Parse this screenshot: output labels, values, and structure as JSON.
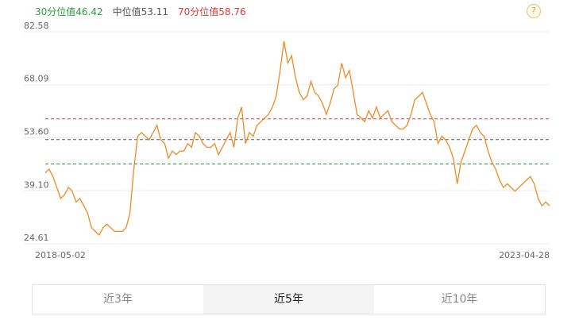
{
  "help_icon": "?",
  "chart_data": {
    "type": "line",
    "reference_lines": [
      {
        "name": "30分位值",
        "value": 46.42,
        "color": "#2a9d3a"
      },
      {
        "name": "中位值",
        "value": 53.11,
        "color": "#555555"
      },
      {
        "name": "70分位值",
        "value": 58.76,
        "color": "#d43a3a"
      }
    ],
    "ylim": [
      24.61,
      82.58
    ],
    "yticks": [
      24.61,
      {
        "value": 39.1,
        "label": "39.10"
      },
      {
        "value": 53.6,
        "label": "53.60"
      },
      68.09,
      82.58
    ],
    "grid": true,
    "color": "#f08a24",
    "categories": [
      "2018-05-02",
      null,
      null,
      null,
      null,
      null,
      null,
      null,
      null,
      null,
      null,
      null,
      null,
      null,
      null,
      null,
      null,
      null,
      null,
      null,
      null,
      null,
      null,
      null,
      null,
      null,
      null,
      null,
      null,
      null,
      null,
      null,
      null,
      null,
      null,
      null,
      null,
      null,
      null,
      null,
      null,
      null,
      null,
      null,
      null,
      null,
      null,
      null,
      null,
      null,
      null,
      null,
      null,
      null,
      null,
      null,
      null,
      null,
      null,
      null,
      null,
      null,
      null,
      null,
      null,
      null,
      null,
      null,
      null,
      null,
      null,
      null,
      null,
      null,
      null,
      null,
      null,
      null,
      null,
      null,
      null,
      null,
      null,
      null,
      null,
      null,
      null,
      null,
      null,
      null,
      null,
      null,
      null,
      null,
      null,
      null,
      null,
      null,
      null,
      null,
      null,
      null,
      null,
      null,
      null,
      null,
      null,
      null,
      null,
      null,
      null,
      null,
      null,
      null,
      null,
      null,
      null,
      null,
      null,
      null,
      null,
      null,
      null,
      null,
      null,
      null,
      null,
      null,
      null,
      null,
      null,
      "2023-04-28"
    ],
    "values": [
      44,
      45,
      43,
      40,
      37,
      38,
      40,
      39,
      36,
      37,
      35,
      33,
      29,
      28,
      27,
      29,
      30,
      29,
      28,
      28,
      28,
      29,
      33,
      45,
      54,
      55,
      54,
      53,
      55,
      57,
      53,
      52,
      48,
      50,
      49,
      50,
      50,
      52,
      51,
      55,
      54,
      52,
      51,
      51,
      52,
      49,
      51,
      53,
      55,
      51,
      59,
      62,
      52,
      55,
      54,
      57,
      58,
      59,
      60,
      62,
      65,
      72,
      80,
      74,
      76,
      70,
      66,
      64,
      65,
      69,
      66,
      65,
      63,
      60,
      63,
      67,
      68,
      74,
      70,
      72,
      66,
      60,
      59,
      58,
      61,
      59,
      62,
      59,
      60,
      61,
      58,
      57,
      56,
      56,
      57,
      60,
      64,
      65,
      66,
      63,
      60,
      58,
      52,
      54,
      53,
      51,
      48,
      41,
      47,
      50,
      53,
      56,
      57,
      55,
      54,
      50,
      47,
      45,
      42,
      40,
      41,
      40,
      39,
      40,
      41,
      42,
      43,
      41,
      37,
      35,
      36,
      35
    ]
  },
  "tabs": [
    "近3年",
    "近5年",
    "近10年"
  ],
  "selected_tab": 1
}
